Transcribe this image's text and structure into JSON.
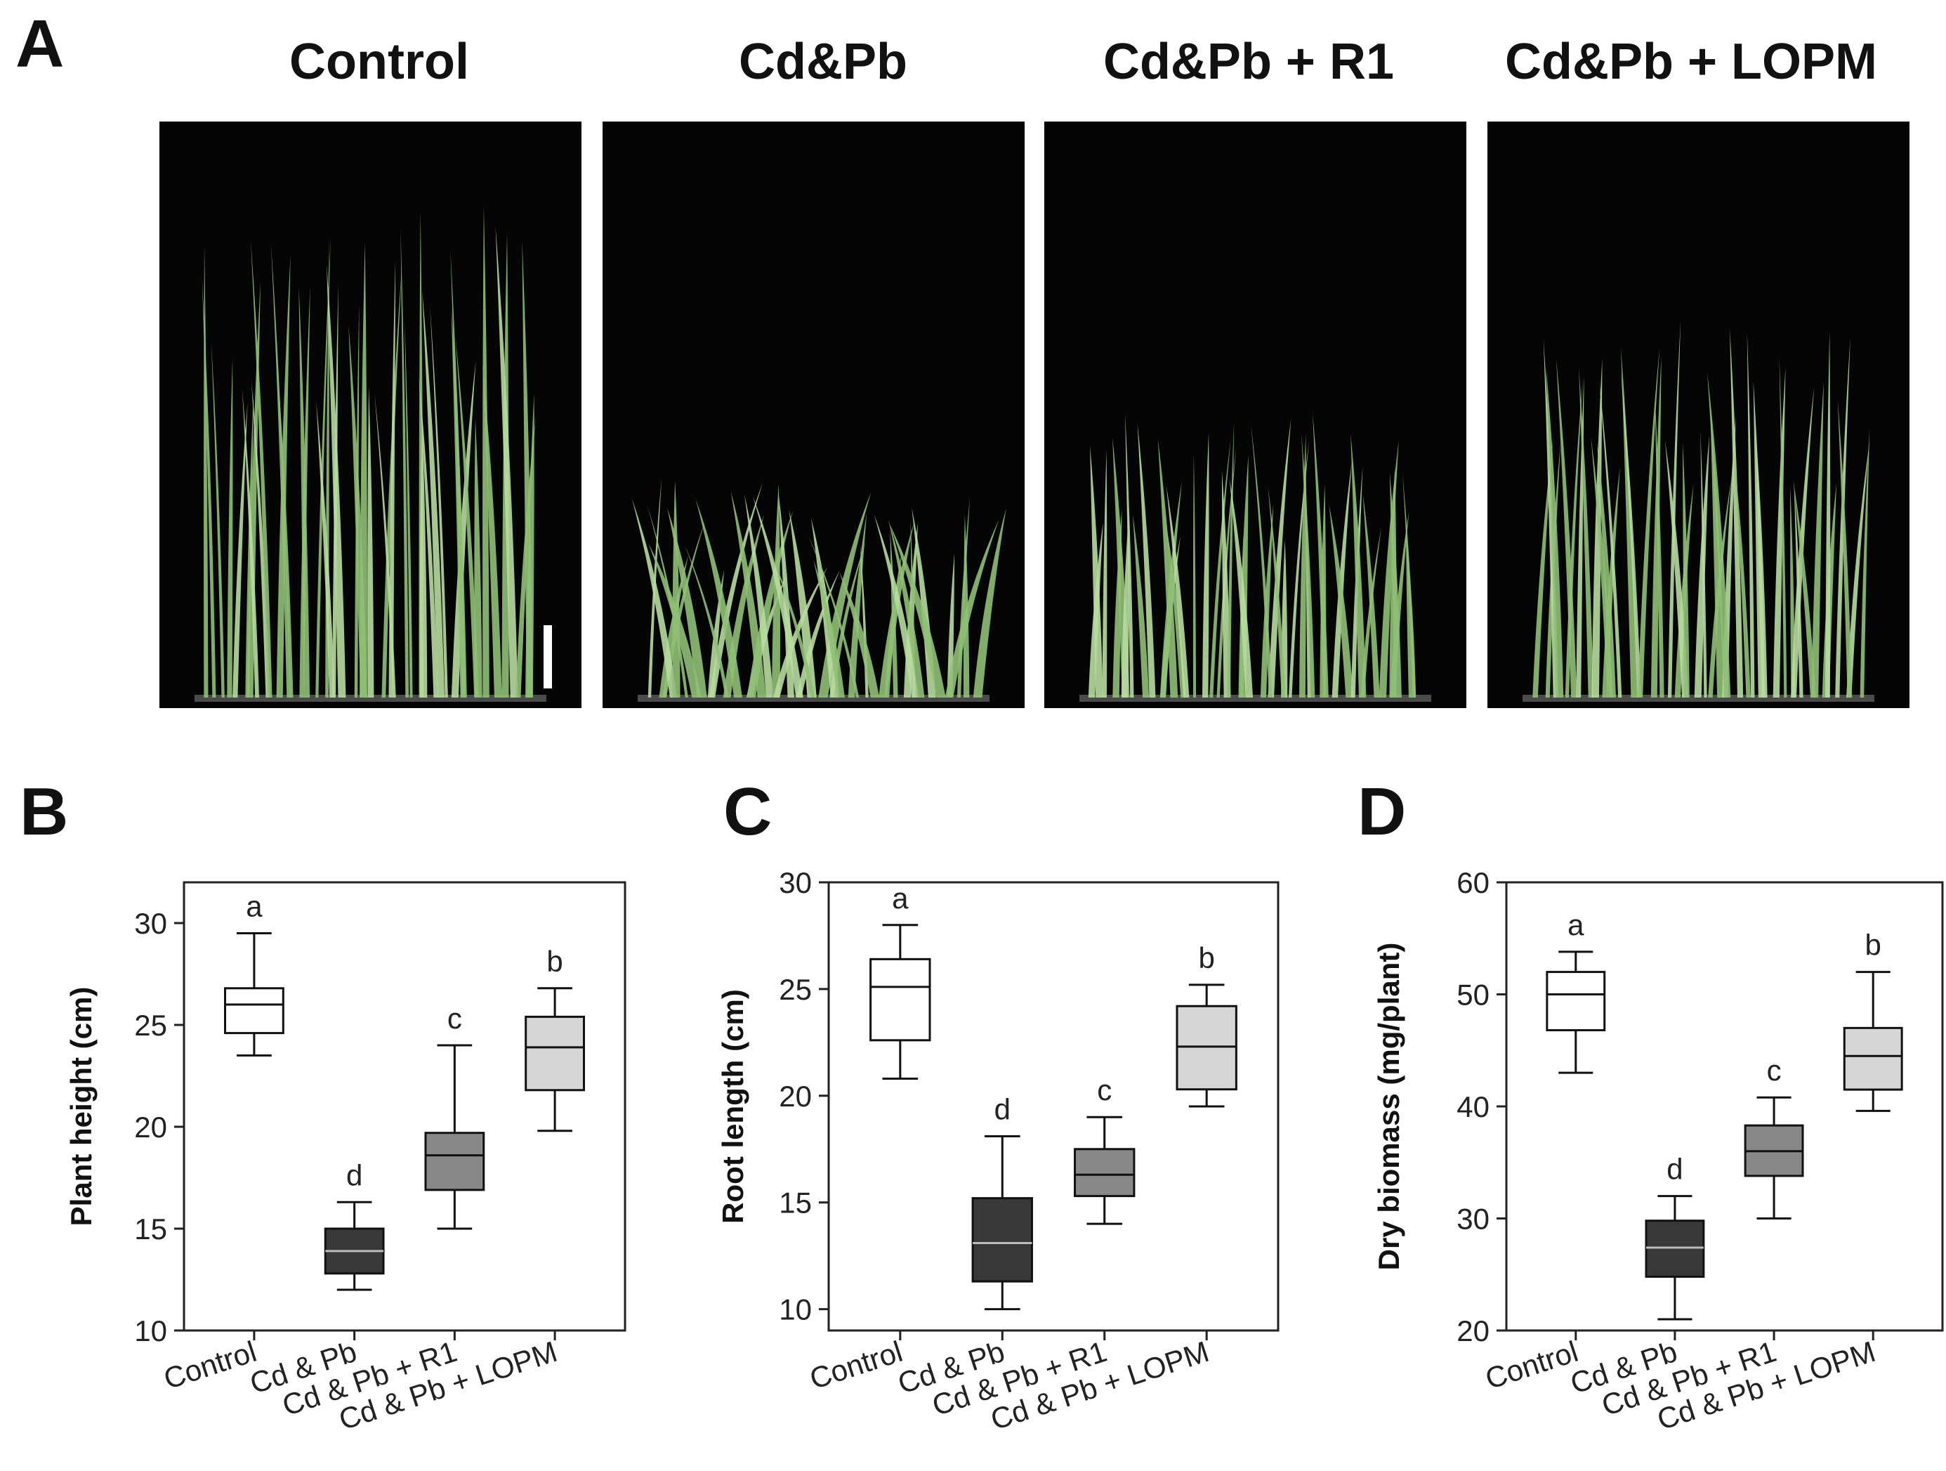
{
  "panel_a": {
    "letter": "A",
    "photo_titles": [
      "Control",
      "Cd&Pb",
      "Cd&Pb + R1",
      "Cd&Pb + LOPM"
    ],
    "relative_plant_height": [
      1.0,
      0.45,
      0.58,
      0.77
    ]
  },
  "colors": {
    "photo_bg": "#050505",
    "leaf": "#8fbf75",
    "leaf_light": "#b8dba0",
    "box_fills": [
      "#ffffff",
      "#383838",
      "#888888",
      "#d6d6d6"
    ],
    "box_stroke": "#111111"
  },
  "chart_data": [
    {
      "type": "box",
      "panel": "B",
      "categories": [
        "Control",
        "Cd & Pb",
        "Cd & Pb + R1",
        "Cd & Pb + LOPM"
      ],
      "ylabel": "Plant height (cm)",
      "xlabel": "",
      "ylim": [
        10,
        32
      ],
      "yticks": [
        10,
        15,
        20,
        25,
        30
      ],
      "boxes": [
        {
          "min": 23.5,
          "q1": 24.6,
          "median": 26.0,
          "q3": 26.8,
          "max": 29.5
        },
        {
          "min": 12.0,
          "q1": 12.8,
          "median": 13.9,
          "q3": 15.0,
          "max": 16.3
        },
        {
          "min": 15.0,
          "q1": 16.9,
          "median": 18.6,
          "q3": 19.7,
          "max": 24.0
        },
        {
          "min": 19.8,
          "q1": 21.8,
          "median": 23.9,
          "q3": 25.4,
          "max": 26.8
        }
      ],
      "letters": [
        "a",
        "d",
        "c",
        "b"
      ]
    },
    {
      "type": "box",
      "panel": "C",
      "categories": [
        "Control",
        "Cd & Pb",
        "Cd & Pb + R1",
        "Cd & Pb + LOPM"
      ],
      "ylabel": "Root length (cm)",
      "xlabel": "",
      "ylim": [
        9,
        30
      ],
      "yticks": [
        10,
        15,
        20,
        25,
        30
      ],
      "boxes": [
        {
          "min": 20.8,
          "q1": 22.6,
          "median": 25.1,
          "q3": 26.4,
          "max": 28.0
        },
        {
          "min": 10.0,
          "q1": 11.3,
          "median": 13.1,
          "q3": 15.2,
          "max": 18.1
        },
        {
          "min": 14.0,
          "q1": 15.3,
          "median": 16.3,
          "q3": 17.5,
          "max": 19.0
        },
        {
          "min": 19.5,
          "q1": 20.3,
          "median": 22.3,
          "q3": 24.2,
          "max": 25.2
        }
      ],
      "letters": [
        "a",
        "d",
        "c",
        "b"
      ]
    },
    {
      "type": "box",
      "panel": "D",
      "categories": [
        "Control",
        "Cd & Pb",
        "Cd & Pb + R1",
        "Cd & Pb + LOPM"
      ],
      "ylabel": "Dry biomass (mg/plant)",
      "xlabel": "",
      "ylim": [
        20,
        60
      ],
      "yticks": [
        20,
        30,
        40,
        50,
        60
      ],
      "boxes": [
        {
          "min": 43.0,
          "q1": 46.8,
          "median": 50.0,
          "q3": 52.0,
          "max": 53.8
        },
        {
          "min": 21.0,
          "q1": 24.8,
          "median": 27.4,
          "q3": 29.8,
          "max": 32.0
        },
        {
          "min": 30.0,
          "q1": 33.8,
          "median": 36.0,
          "q3": 38.3,
          "max": 40.8
        },
        {
          "min": 39.6,
          "q1": 41.5,
          "median": 44.5,
          "q3": 47.0,
          "max": 52.0
        }
      ],
      "letters": [
        "a",
        "d",
        "c",
        "b"
      ]
    }
  ]
}
